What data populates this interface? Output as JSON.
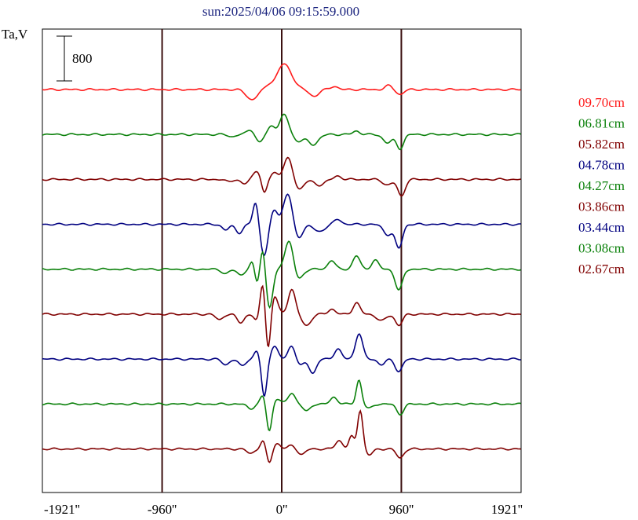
{
  "chart_data": {
    "type": "line",
    "title": "sun:2025/04/06 09:15:59.000",
    "ylabel": "Ta,V",
    "scale_bar_label": "800",
    "xlim": [
      -1921,
      1921
    ],
    "x_ticks": [
      {
        "value": -1921,
        "label": "-1921''"
      },
      {
        "value": -960,
        "label": "-960''"
      },
      {
        "value": 0,
        "label": "0''"
      },
      {
        "value": 960,
        "label": "960''"
      },
      {
        "value": 1921,
        "label": "1921''"
      }
    ],
    "vertical_lines": [
      -960,
      0,
      960
    ],
    "vertical_line_color": "#3b1010",
    "grid": false,
    "legend_position": "right",
    "series": [
      {
        "name": "09.70cm",
        "color": "#ff1a1a",
        "baseline": 0,
        "peaks": [
          [
            -240,
            -180,
            60
          ],
          [
            -100,
            80,
            40
          ],
          [
            10,
            420,
            70
          ],
          [
            80,
            120,
            60
          ],
          [
            260,
            -120,
            50
          ],
          [
            420,
            60,
            40
          ],
          [
            860,
            70,
            40
          ],
          [
            950,
            -90,
            40
          ]
        ]
      },
      {
        "name": "06.81cm",
        "color": "#0a800a",
        "baseline": -1,
        "peaks": [
          [
            -400,
            -40,
            40
          ],
          [
            -250,
            90,
            40
          ],
          [
            -180,
            -140,
            40
          ],
          [
            -80,
            150,
            40
          ],
          [
            20,
            350,
            50
          ],
          [
            130,
            -120,
            50
          ],
          [
            250,
            -180,
            60
          ],
          [
            600,
            60,
            40
          ],
          [
            850,
            -150,
            50
          ],
          [
            950,
            -250,
            40
          ]
        ]
      },
      {
        "name": "05.82cm",
        "color": "#800000",
        "baseline": -2,
        "peaks": [
          [
            -430,
            -40,
            40
          ],
          [
            -300,
            -80,
            40
          ],
          [
            -200,
            160,
            40
          ],
          [
            -140,
            -260,
            30
          ],
          [
            -60,
            120,
            40
          ],
          [
            50,
            380,
            50
          ],
          [
            140,
            -180,
            50
          ],
          [
            300,
            -100,
            60
          ],
          [
            450,
            60,
            40
          ],
          [
            850,
            -100,
            50
          ],
          [
            960,
            -300,
            40
          ]
        ]
      },
      {
        "name": "04.78cm",
        "color": "#000080",
        "baseline": -3,
        "peaks": [
          [
            -450,
            -100,
            40
          ],
          [
            -340,
            -150,
            40
          ],
          [
            -210,
            400,
            30
          ],
          [
            -140,
            -550,
            40
          ],
          [
            -60,
            260,
            40
          ],
          [
            50,
            560,
            50
          ],
          [
            130,
            -260,
            50
          ],
          [
            300,
            -130,
            60
          ],
          [
            450,
            90,
            40
          ],
          [
            850,
            -180,
            50
          ],
          [
            940,
            -420,
            40
          ]
        ]
      },
      {
        "name": "04.27cm",
        "color": "#0a800a",
        "baseline": -4,
        "peaks": [
          [
            -450,
            -80,
            40
          ],
          [
            -330,
            -100,
            40
          ],
          [
            -230,
            180,
            30
          ],
          [
            -200,
            -300,
            30
          ],
          [
            -150,
            460,
            30
          ],
          [
            -100,
            -700,
            40
          ],
          [
            60,
            520,
            50
          ],
          [
            130,
            -210,
            50
          ],
          [
            400,
            160,
            40
          ],
          [
            600,
            240,
            40
          ],
          [
            750,
            160,
            40
          ],
          [
            940,
            -380,
            40
          ]
        ]
      },
      {
        "name": "03.86cm",
        "color": "#800000",
        "baseline": -5,
        "peaks": [
          [
            -500,
            -100,
            40
          ],
          [
            -330,
            -150,
            40
          ],
          [
            -200,
            -130,
            30
          ],
          [
            -150,
            620,
            30
          ],
          [
            -110,
            -750,
            30
          ],
          [
            -60,
            340,
            40
          ],
          [
            80,
            450,
            40
          ],
          [
            200,
            -200,
            50
          ],
          [
            400,
            90,
            40
          ],
          [
            600,
            200,
            40
          ],
          [
            800,
            -120,
            50
          ],
          [
            940,
            -200,
            40
          ]
        ]
      },
      {
        "name": "03.44cm",
        "color": "#000080",
        "baseline": -6,
        "peaks": [
          [
            -450,
            -100,
            40
          ],
          [
            -320,
            -120,
            40
          ],
          [
            -200,
            150,
            30
          ],
          [
            -140,
            -680,
            30
          ],
          [
            -60,
            230,
            40
          ],
          [
            80,
            240,
            40
          ],
          [
            150,
            -120,
            40
          ],
          [
            250,
            -250,
            40
          ],
          [
            450,
            180,
            40
          ],
          [
            620,
            460,
            40
          ],
          [
            800,
            -100,
            40
          ],
          [
            940,
            -220,
            40
          ]
        ]
      },
      {
        "name": "03.08cm",
        "color": "#0a800a",
        "baseline": -7,
        "peaks": [
          [
            -250,
            -80,
            40
          ],
          [
            -150,
            160,
            30
          ],
          [
            -100,
            -500,
            30
          ],
          [
            -40,
            100,
            40
          ],
          [
            80,
            200,
            40
          ],
          [
            200,
            -130,
            40
          ],
          [
            420,
            120,
            40
          ],
          [
            620,
            430,
            30
          ],
          [
            700,
            -80,
            40
          ],
          [
            950,
            -180,
            40
          ]
        ]
      },
      {
        "name": "02.67cm",
        "color": "#800000",
        "baseline": -8,
        "peaks": [
          [
            -250,
            -80,
            40
          ],
          [
            -150,
            150,
            30
          ],
          [
            -100,
            -260,
            30
          ],
          [
            -40,
            100,
            40
          ],
          [
            80,
            60,
            40
          ],
          [
            160,
            -100,
            40
          ],
          [
            460,
            150,
            40
          ],
          [
            560,
            220,
            30
          ],
          [
            630,
            700,
            30
          ],
          [
            700,
            -110,
            40
          ],
          [
            950,
            -160,
            40
          ]
        ]
      }
    ]
  }
}
